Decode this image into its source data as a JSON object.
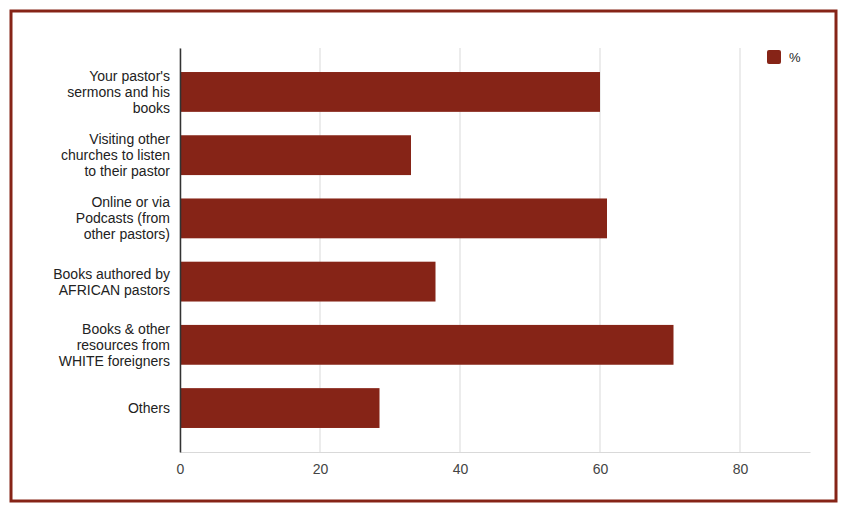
{
  "chart_data": {
    "type": "bar",
    "orientation": "horizontal",
    "categories": [
      "Your pastor's sermons and his books",
      "Visiting other churches to listen to their pastor",
      "Online or via Podcasts (from other pastors)",
      "Books authored by AFRICAN pastors",
      "Books & other resources from WHITE foreigners",
      "Others"
    ],
    "series": [
      {
        "name": "%",
        "color": "#862417",
        "values": [
          60,
          33,
          61,
          36.5,
          70.5,
          28.5
        ]
      }
    ],
    "xlim": [
      0,
      90
    ],
    "xticks": [
      0,
      20,
      40,
      60,
      80
    ],
    "grid": true,
    "legend": "top-right"
  }
}
